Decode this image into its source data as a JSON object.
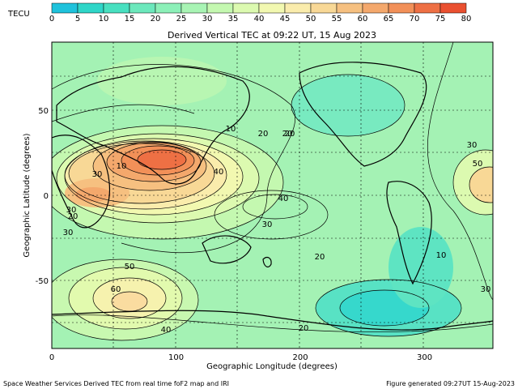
{
  "colorbar": {
    "unit": "TECU",
    "ticks": [
      "0",
      "5",
      "10",
      "15",
      "20",
      "25",
      "30",
      "35",
      "40",
      "45",
      "50",
      "55",
      "60",
      "65",
      "70",
      "75",
      "80"
    ],
    "colors": [
      "#1fc2dc",
      "#2fd6c8",
      "#48e0c0",
      "#6ce8bc",
      "#8cf0b8",
      "#a8f4b4",
      "#c4f8b0",
      "#dcfab0",
      "#f2f8b0",
      "#faecac",
      "#f8d896",
      "#f6c080",
      "#f4a86c",
      "#f29058",
      "#ee7044",
      "#ea5030"
    ]
  },
  "chart_data": {
    "type": "heatmap",
    "title": "Derived Vertical TEC at 09:22 UT, 15 Aug 2023",
    "xlabel": "Geographic Longitude (degrees)",
    "ylabel": "Geographic Latitude (degrees)",
    "xlim": [
      0,
      355
    ],
    "ylim": [
      -90,
      90
    ],
    "x_ticks": [
      "0",
      "100",
      "200",
      "300"
    ],
    "y_ticks": [
      "50",
      "0",
      "-50"
    ],
    "contour_labels": [
      "10",
      "20",
      "30",
      "40",
      "50",
      "60",
      "20",
      "40",
      "30",
      "20",
      "10",
      "30",
      "20",
      "30",
      "40",
      "50",
      "30",
      "20",
      "10",
      "20",
      "30"
    ],
    "zmin": 0,
    "zmax": 80
  },
  "footer": {
    "left": "Space Weather Services Derived TEC from real time foF2 map and IRI",
    "right": "Figure generated 09:27UT 15-Aug-2023"
  }
}
